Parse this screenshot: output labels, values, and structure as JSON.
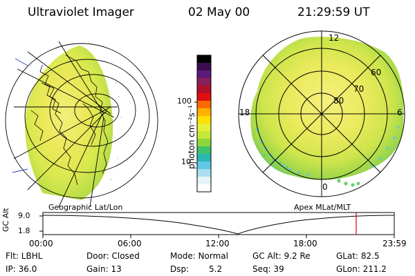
{
  "header": {
    "instrument": "Ultraviolet Imager",
    "date": "02 May 00",
    "time": "21:29:59 UT"
  },
  "colorbar": {
    "label": "photon cm⁻²s⁻¹",
    "ticks": [
      "100",
      "10"
    ],
    "colors": [
      "#000000",
      "#3b0f4f",
      "#5c1a7a",
      "#8a1f5c",
      "#b0102a",
      "#e01010",
      "#ff6a00",
      "#ffb300",
      "#ffe000",
      "#e8ef3a",
      "#c6e83a",
      "#8fd63a",
      "#3fc36a",
      "#29b8b0",
      "#5fc9e6",
      "#a8e0ef",
      "#e6f4f6",
      "#ffffff"
    ]
  },
  "left_map": {
    "projection_label": "Geographic Lat/Lon"
  },
  "right_map": {
    "projection_label": "Apex MLat/MLT",
    "mlt_labels": [
      "12",
      "18",
      "6",
      "0"
    ],
    "lat_labels": [
      "60",
      "70",
      "80"
    ]
  },
  "altitude_strip": {
    "axis_label": "GC Alt",
    "y_ticks": [
      "9.0",
      "1.8"
    ],
    "x_ticks": [
      "00:00",
      "06:00",
      "12:00",
      "18:00",
      "23:59"
    ],
    "current_time_marker_color": "#e00000"
  },
  "status": {
    "filter": "Flt: LBHL",
    "door": "Door: Closed",
    "mode": "Mode: Normal",
    "gc_alt": "GC Alt: 9.2 Re",
    "glat": "GLat:  82.5",
    "ip": "IP: 36.0",
    "gain": "Gain: 13",
    "dsp_label": "Dsp:",
    "dsp_value": "5.2",
    "seq": "Seq: 39",
    "glon": "GLon: 211.2"
  }
}
